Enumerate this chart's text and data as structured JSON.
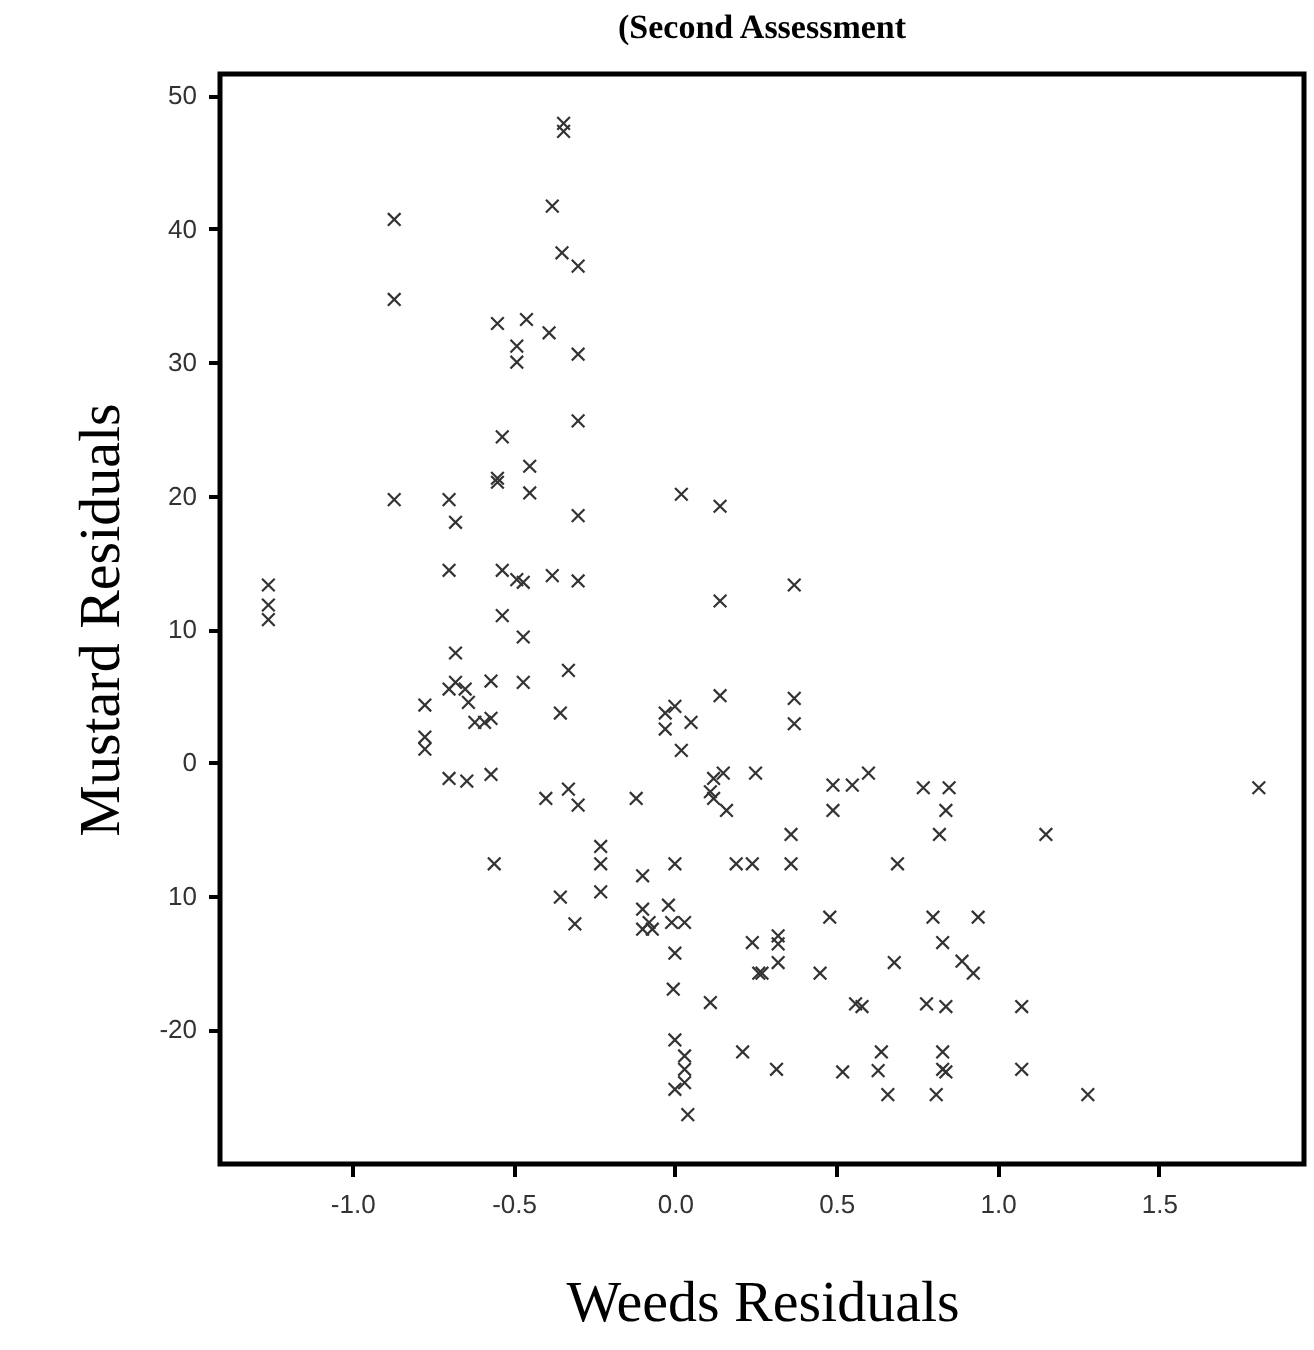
{
  "chart_data": {
    "type": "scatter",
    "title": "(Second Assessment",
    "xlabel": "Weeds Residuals",
    "ylabel": "Mustard Residuals",
    "xlim": [
      -1.41,
      1.95
    ],
    "ylim": [
      -30.1,
      51.6
    ],
    "xticks": [
      {
        "value": -1.0,
        "label": "-1.0"
      },
      {
        "value": -0.5,
        "label": "-0.5"
      },
      {
        "value": 0.0,
        "label": "0.0"
      },
      {
        "value": 0.5,
        "label": "0.5"
      },
      {
        "value": 1.0,
        "label": "1.0"
      },
      {
        "value": 1.5,
        "label": "1.5"
      }
    ],
    "yticks": [
      {
        "value": -20,
        "label": "-20"
      },
      {
        "value": -10,
        "label": "10"
      },
      0,
      10,
      20,
      30,
      40,
      50
    ],
    "grid": false,
    "marker": "cross",
    "series": [
      {
        "color": "#333333",
        "x": [
          -1.26,
          -1.26,
          -1.26,
          -0.87,
          -0.87,
          -0.87,
          -0.345,
          -0.345,
          -0.38,
          -0.35,
          -0.3,
          -0.55,
          -0.46,
          -0.39,
          -0.49,
          -0.49,
          -0.3,
          -0.3,
          -0.535,
          -0.55,
          -0.55,
          -0.45,
          -0.45,
          -0.7,
          -0.68,
          -0.3,
          0.02,
          0.14,
          -0.7,
          -0.535,
          -0.49,
          -0.47,
          -0.38,
          -0.3,
          0.14,
          -0.535,
          -0.47,
          -0.68,
          -0.33,
          -0.7,
          -0.68,
          -0.65,
          -0.64,
          -0.57,
          -0.47,
          -0.775,
          -0.355,
          -0.62,
          -0.59,
          -0.57,
          -0.775,
          -0.775,
          -0.7,
          -0.645,
          -0.57,
          -0.4,
          -0.33,
          -0.3,
          -0.56,
          -0.23,
          -0.23,
          -0.23,
          -0.355,
          -0.31,
          -0.12,
          -0.1,
          -0.1,
          -0.08,
          -0.07,
          -0.1,
          -0.02,
          -0.01,
          0.03,
          0.0,
          0.0,
          -0.005,
          0.0,
          0.03,
          0.03,
          0.03,
          0.0,
          0.04,
          -0.03,
          0.0,
          0.05,
          -0.03,
          0.02,
          0.14,
          0.12,
          0.15,
          0.11,
          0.12,
          0.16,
          0.25,
          0.11,
          0.19,
          0.24,
          0.24,
          0.26,
          0.21,
          0.37,
          0.37,
          0.37,
          0.36,
          0.36,
          0.49,
          0.55,
          0.6,
          0.49,
          0.77,
          0.85,
          0.84,
          0.82,
          1.15,
          1.81,
          0.69,
          0.48,
          0.8,
          0.94,
          0.32,
          0.32,
          0.32,
          0.27,
          0.45,
          0.68,
          0.83,
          0.89,
          0.925,
          0.56,
          0.58,
          0.78,
          0.84,
          1.075,
          0.315,
          0.52,
          0.64,
          0.63,
          0.66,
          0.83,
          0.83,
          0.84,
          0.81,
          1.075,
          1.28
        ],
        "values": [
          13.3,
          11.8,
          10.7,
          40.7,
          34.7,
          19.7,
          47.9,
          47.3,
          41.7,
          38.2,
          37.2,
          32.9,
          33.2,
          32.2,
          31.2,
          30.0,
          30.6,
          25.6,
          24.4,
          21.3,
          21.0,
          22.2,
          20.2,
          19.7,
          18.0,
          18.5,
          20.1,
          19.2,
          14.4,
          14.4,
          13.7,
          13.5,
          14.0,
          13.6,
          12.1,
          11.0,
          9.4,
          8.2,
          6.9,
          5.5,
          6.0,
          5.5,
          4.5,
          6.1,
          6.0,
          4.3,
          3.7,
          3.0,
          3.0,
          3.3,
          1.9,
          1.0,
          -1.2,
          -1.4,
          -0.9,
          -2.7,
          -2.0,
          -3.2,
          -7.6,
          -6.3,
          -7.6,
          -9.7,
          -10.1,
          -12.1,
          -2.7,
          -8.5,
          -11.0,
          -12.0,
          -12.5,
          -12.5,
          -10.7,
          -12.0,
          -12.0,
          -7.6,
          -14.3,
          -17.0,
          -20.8,
          -22.0,
          -23.0,
          -24.0,
          -24.5,
          -26.4,
          3.7,
          4.2,
          3.0,
          2.5,
          0.9,
          5.0,
          -1.2,
          -0.8,
          -2.2,
          -2.7,
          -3.6,
          -0.8,
          -18.0,
          -7.6,
          -7.6,
          -13.5,
          -15.8,
          -21.7,
          13.3,
          4.8,
          2.9,
          -5.4,
          -7.6,
          -1.7,
          -1.7,
          -0.8,
          -3.6,
          -1.9,
          -1.9,
          -3.6,
          -5.4,
          -5.4,
          -1.9,
          -7.6,
          -11.6,
          -11.6,
          -11.6,
          -13.0,
          -13.6,
          -15.0,
          -15.8,
          -15.8,
          -15.0,
          -13.5,
          -14.9,
          -15.8,
          -18.1,
          -18.3,
          -18.1,
          -18.3,
          -18.3,
          -23.0,
          -23.2,
          -21.7,
          -23.1,
          -24.9,
          -21.7,
          -23.0,
          -23.2,
          -24.9,
          -23.0,
          -24.9
        ]
      }
    ]
  }
}
